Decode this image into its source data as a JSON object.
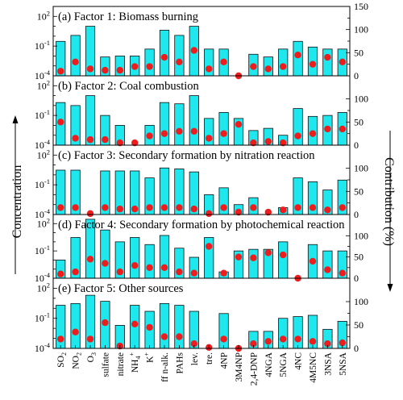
{
  "colors": {
    "bar": "#1ee8ee",
    "bar_stroke": "#111111",
    "dot": "#ee1c1c"
  },
  "chart_data": {
    "type": "bar",
    "left_ylabel": "Concentration",
    "right_ylabel": "Contribution (%)",
    "left_scale": "log",
    "left_ylim": [
      0.0001,
      1000
    ],
    "left_ticks": [
      "10^2",
      "10^-1",
      "10^-4"
    ],
    "right_ylim": [
      0,
      150
    ],
    "right_ticks_top": [
      "0",
      "50",
      "100",
      "150"
    ],
    "right_ticks_other": [
      "0",
      "50",
      "100"
    ],
    "categories": [
      "SO2",
      "NO2",
      "O3",
      "sulfate",
      "nitrate",
      "NH4+",
      "K+",
      "ff n-alk.",
      "PAHs",
      "lev.",
      "tre.",
      "4NP",
      "3M4NP",
      "2,4-DNP",
      "4NGA",
      "5NGA",
      "4NC",
      "4M5NC",
      "3NSA",
      "5NSA"
    ],
    "category_labels": [
      {
        "base": "SO",
        "sub": "2",
        "sup": ""
      },
      {
        "base": "NO",
        "sub": "2",
        "sup": ""
      },
      {
        "base": "O",
        "sub": "3",
        "sup": ""
      },
      {
        "base": "sulfate",
        "sub": "",
        "sup": ""
      },
      {
        "base": "nitrate",
        "sub": "",
        "sup": ""
      },
      {
        "base": "NH",
        "sub": "4",
        "sup": "+"
      },
      {
        "base": "K",
        "sub": "",
        "sup": "+"
      },
      {
        "base": "ff n-alk.",
        "sub": "",
        "sup": ""
      },
      {
        "base": "PAHs",
        "sub": "",
        "sup": ""
      },
      {
        "base": "lev.",
        "sub": "",
        "sup": ""
      },
      {
        "base": "tre.",
        "sub": "",
        "sup": ""
      },
      {
        "base": "4NP",
        "sub": "",
        "sup": ""
      },
      {
        "base": "3M4NP",
        "sub": "",
        "sup": ""
      },
      {
        "base": "2,4-DNP",
        "sub": "",
        "sup": ""
      },
      {
        "base": "4NGA",
        "sub": "",
        "sup": ""
      },
      {
        "base": "5NGA",
        "sub": "",
        "sup": ""
      },
      {
        "base": "4NC",
        "sub": "",
        "sup": ""
      },
      {
        "base": "4M5NC",
        "sub": "",
        "sup": ""
      },
      {
        "base": "3NSA",
        "sub": "",
        "sup": ""
      },
      {
        "base": "5NSA",
        "sub": "",
        "sup": ""
      }
    ],
    "panels": [
      {
        "title": "(a) Factor 1: Biomass burning",
        "concentration": [
          0.3,
          1.2,
          10,
          0.008,
          0.01,
          0.01,
          0.05,
          4,
          1.2,
          10,
          0.05,
          0.05,
          0.0001,
          0.015,
          0.008,
          0.05,
          0.3,
          0.08,
          0.05,
          0.05
        ],
        "contribution": [
          10,
          30,
          15,
          12,
          12,
          20,
          20,
          40,
          30,
          55,
          15,
          30,
          0,
          20,
          15,
          20,
          45,
          25,
          40,
          30
        ]
      },
      {
        "title": "(b) Factor 2: Coal combustion",
        "concentration": [
          2,
          1,
          10,
          0.1,
          0.01,
          0.0001,
          0.01,
          2,
          1.5,
          10,
          0.05,
          0.2,
          0.05,
          0.003,
          0.005,
          0.001,
          0.5,
          0.08,
          0.1,
          0.2
        ],
        "contribution": [
          50,
          15,
          12,
          12,
          5,
          5,
          20,
          25,
          30,
          30,
          15,
          25,
          45,
          5,
          8,
          5,
          20,
          25,
          35,
          35
        ]
      },
      {
        "title": "(c) Factor 3: Secondary formation by nitration reaction",
        "concentration": [
          3,
          3,
          0.0001,
          2.5,
          2.5,
          2.5,
          0.5,
          5,
          4,
          2,
          0.01,
          0.05,
          0.001,
          0.005,
          0.0001,
          0.0005,
          0.5,
          0.2,
          0.03,
          0.3
        ],
        "contribution": [
          15,
          15,
          2,
          15,
          12,
          12,
          15,
          15,
          15,
          12,
          2,
          15,
          5,
          15,
          5,
          10,
          15,
          15,
          10,
          15
        ]
      },
      {
        "title": "(d) Factor 4: Secondary formation by photochemical reaction",
        "concentration": [
          0.01,
          3,
          300,
          20,
          1,
          3,
          0.5,
          5,
          0.2,
          0.02,
          3,
          0.0005,
          0.1,
          0.15,
          0.15,
          1,
          0.0001,
          0.5,
          0.1,
          0.1
        ],
        "contribution": [
          10,
          15,
          45,
          35,
          15,
          30,
          25,
          25,
          15,
          12,
          75,
          12,
          50,
          48,
          60,
          55,
          0,
          40,
          20,
          12
        ]
      },
      {
        "title": "(e) Factor 5: Other sources",
        "concentration": [
          2,
          3,
          20,
          5,
          0.02,
          2,
          0.5,
          3,
          2,
          0.5,
          0.0001,
          0.3,
          0.0001,
          0.005,
          0.005,
          0.1,
          0.15,
          0.2,
          0.008,
          0.05
        ],
        "contribution": [
          20,
          35,
          20,
          55,
          5,
          52,
          45,
          25,
          25,
          10,
          2,
          20,
          0,
          10,
          15,
          20,
          20,
          15,
          10,
          12
        ]
      }
    ]
  }
}
